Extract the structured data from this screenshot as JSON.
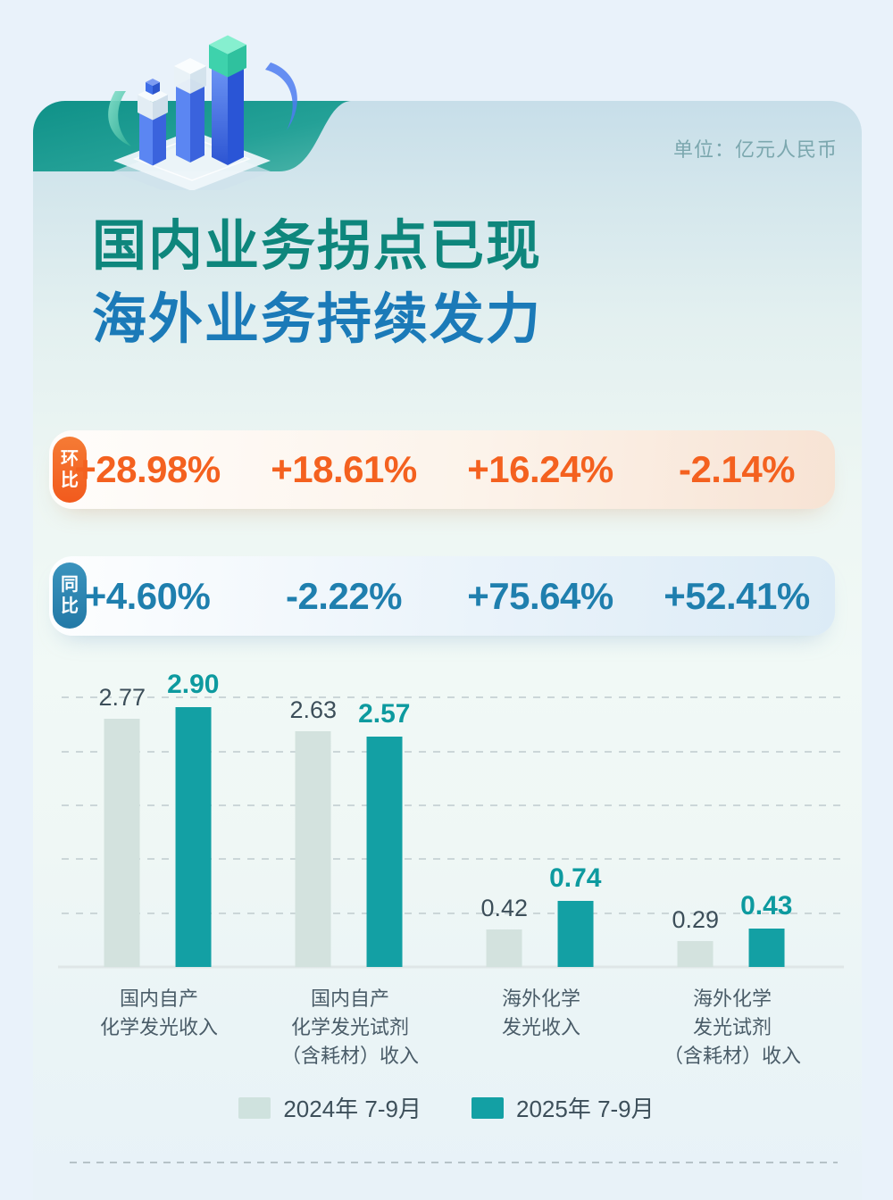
{
  "unit_label": "单位：亿元人民币",
  "title": {
    "line1": "国内业务拐点已现",
    "line2": "海外业务持续发力"
  },
  "rows": {
    "qoq": {
      "badge": "环比",
      "values": [
        "+28.98%",
        "+18.61%",
        "+16.24%",
        "-2.14%"
      ]
    },
    "yoy": {
      "badge": "同比",
      "values": [
        "+4.60%",
        "-2.22%",
        "+75.64%",
        "+52.41%"
      ]
    }
  },
  "chart_data": {
    "type": "bar",
    "unit": "亿元人民币",
    "categories": [
      "国内自产化学发光收入",
      "国内自产化学发光试剂（含耗材）收入",
      "海外化学发光收入",
      "海外化学发光试剂（含耗材）收入"
    ],
    "categories_lines": [
      [
        "国内自产",
        "化学发光收入"
      ],
      [
        "国内自产",
        "化学发光试剂",
        "（含耗材）收入"
      ],
      [
        "海外化学",
        "发光收入"
      ],
      [
        "海外化学",
        "发光试剂",
        "（含耗材）收入"
      ]
    ],
    "series": [
      {
        "name": "2024年 7-9月",
        "values": [
          2.77,
          2.63,
          0.42,
          0.29
        ],
        "labels": [
          "2.77",
          "2.63",
          "0.42",
          "0.29"
        ],
        "color": "#d3e2de"
      },
      {
        "name": "2025年 7-9月",
        "values": [
          2.9,
          2.57,
          0.74,
          0.43
        ],
        "labels": [
          "2.90",
          "2.57",
          "0.74",
          "0.43"
        ],
        "color": "#13a0a4"
      }
    ],
    "ylim": [
      0,
      3.0
    ],
    "gridline_step": 0.6,
    "grid": "horizontal dashed",
    "legend_position": "bottom"
  },
  "legend": {
    "items": [
      {
        "label": "2024年 7-9月",
        "color": "#cfe2de"
      },
      {
        "label": "2025年 7-9月",
        "color": "#13a0a4"
      }
    ]
  },
  "colors": {
    "page_background": "#e9f2fa",
    "header_band_teal": "#16968c",
    "title_line1": "#0e867c",
    "title_line2": "#1b7ab8",
    "qoq_accent": "#f4611f",
    "yoy_accent": "#1f7fae",
    "bar_2024": "#d3e2de",
    "bar_2025": "#13a0a4"
  }
}
